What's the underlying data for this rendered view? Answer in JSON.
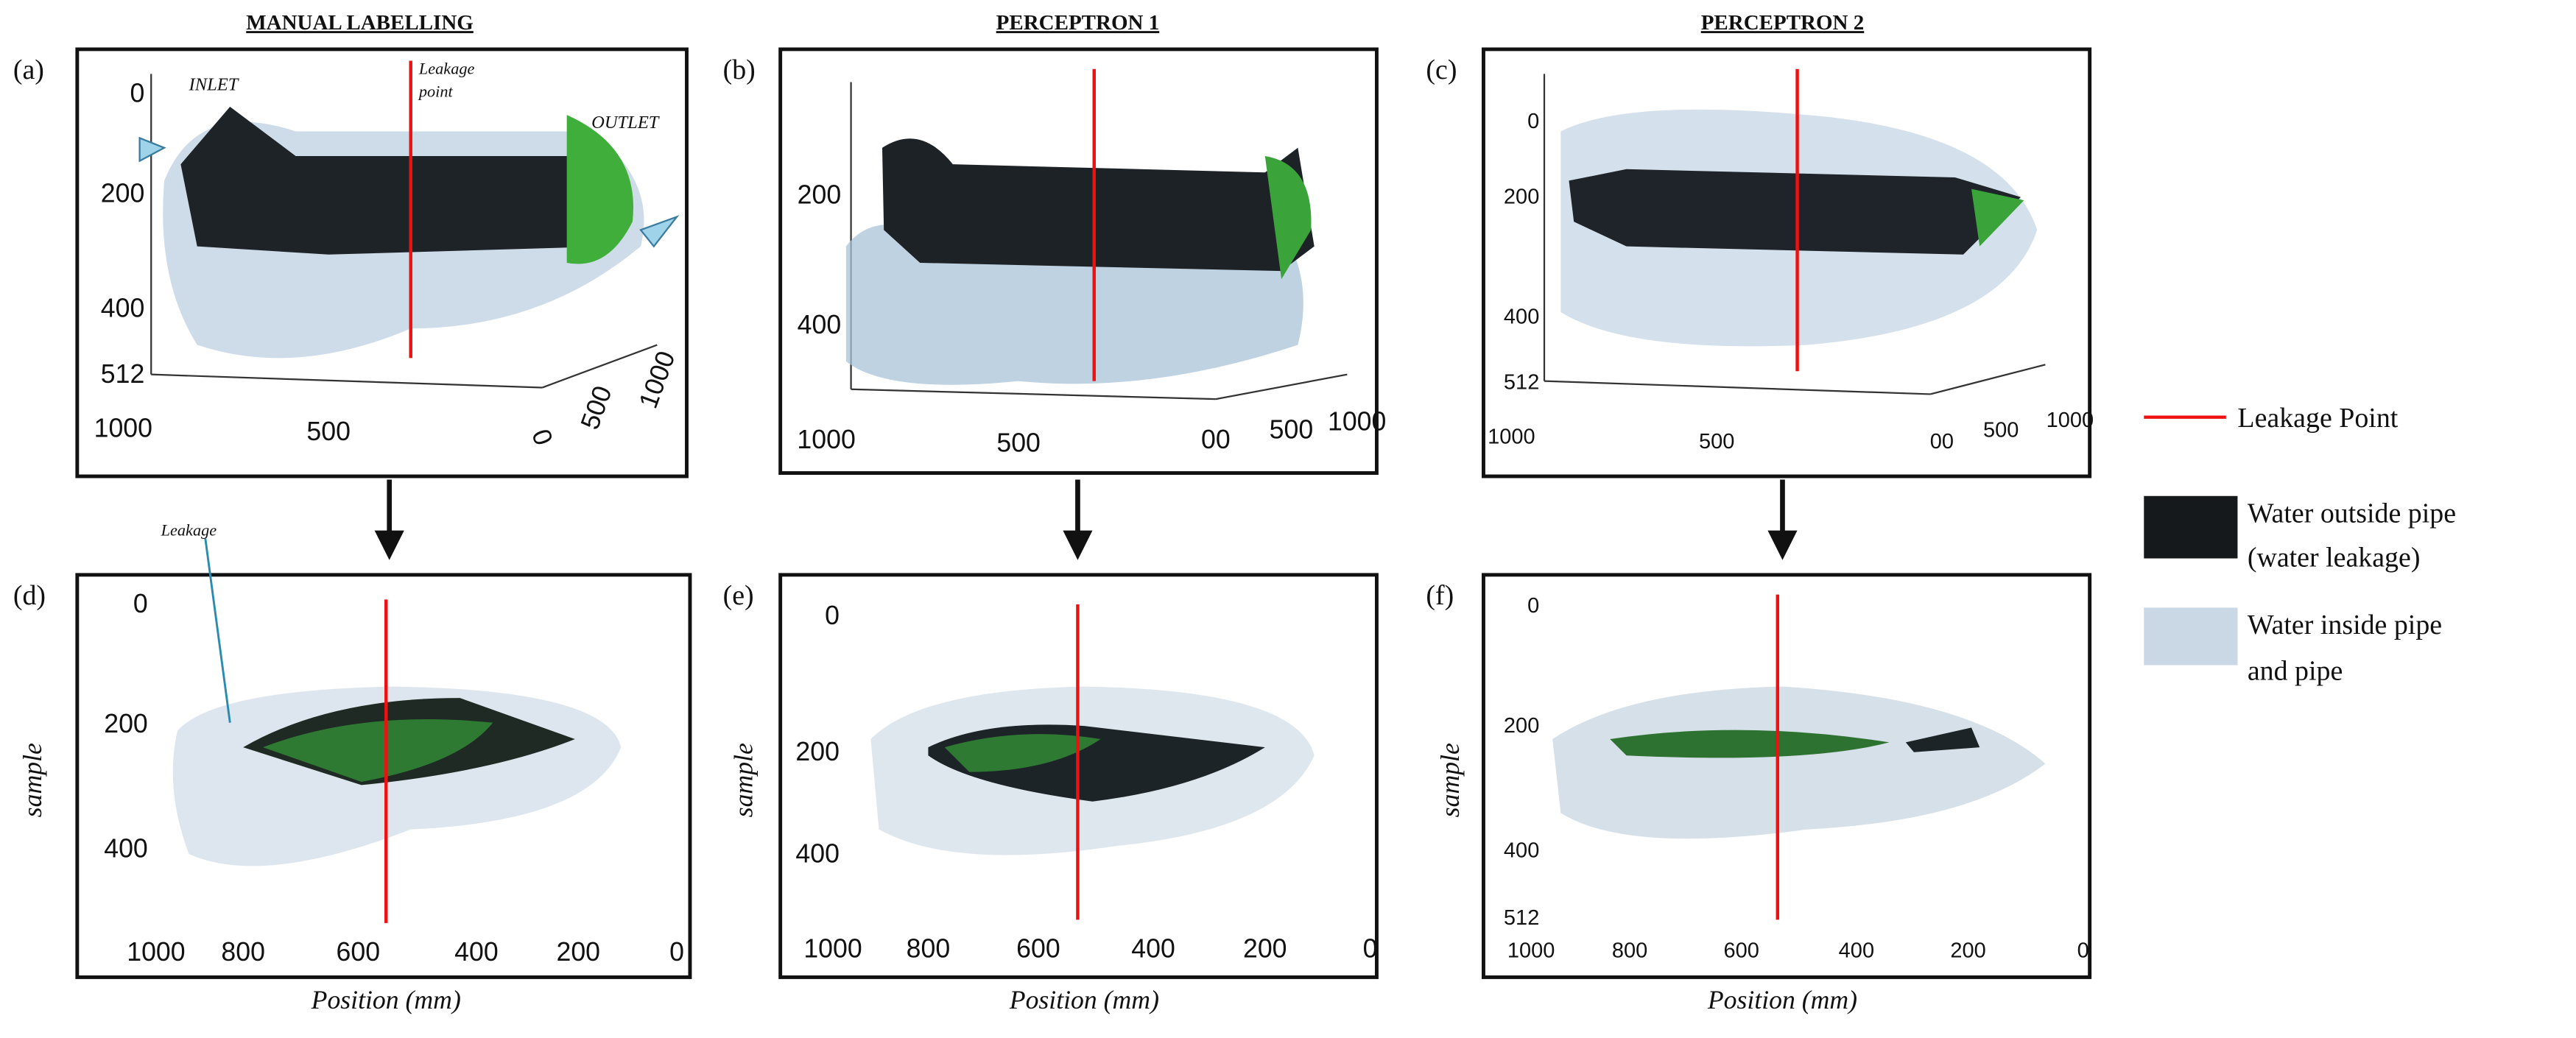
{
  "columns": [
    {
      "title": "MANUAL LABELLING"
    },
    {
      "title": "PERCEPTRON 1"
    },
    {
      "title": "PERCEPTRON 2"
    }
  ],
  "panels": [
    {
      "label": "(a)",
      "y_ticks": [
        "0",
        "200",
        "400",
        "512"
      ],
      "x_ticks": [
        "1000",
        "500",
        "0",
        "500",
        "1000"
      ],
      "notes": [
        "INLET",
        "Leakage",
        "point",
        "OUTLET"
      ]
    },
    {
      "label": "(b)",
      "y_ticks": [
        "200",
        "400"
      ],
      "x_ticks": [
        "1000",
        "500",
        "00",
        "500",
        "1000"
      ]
    },
    {
      "label": "(c)",
      "y_ticks": [
        "0",
        "200",
        "400",
        "512"
      ],
      "x_ticks": [
        "1000",
        "500",
        "00",
        "500",
        "1000"
      ]
    },
    {
      "label": "(d)",
      "y_ticks": [
        "0",
        "200",
        "400"
      ],
      "x_ticks": [
        "1000",
        "800",
        "600",
        "400",
        "200",
        "0"
      ],
      "notes": [
        "Leakage"
      ]
    },
    {
      "label": "(e)",
      "y_ticks": [
        "0",
        "200",
        "400"
      ],
      "x_ticks": [
        "1000",
        "800",
        "600",
        "400",
        "200",
        "0"
      ]
    },
    {
      "label": "(f)",
      "y_ticks": [
        "0",
        "200",
        "400",
        "512"
      ],
      "x_ticks": [
        "1000",
        "800",
        "600",
        "400",
        "200",
        "0"
      ]
    }
  ],
  "axis_labels": {
    "y": "sample",
    "x": "Position (mm)"
  },
  "legend": [
    {
      "lines": [
        "Leakage Point"
      ]
    },
    {
      "lines": [
        "Water outside pipe",
        "(water leakage)"
      ]
    },
    {
      "lines": [
        "Water inside pipe",
        "and pipe"
      ]
    }
  ]
}
